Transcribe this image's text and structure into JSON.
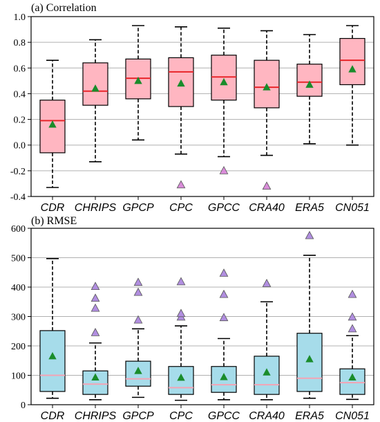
{
  "chart_data": [
    {
      "type": "box",
      "title": "(a) Correlation",
      "categories": [
        "CDR",
        "CHRIPS",
        "GPCP",
        "CPC",
        "GPCC",
        "CRA40",
        "ERA5",
        "CN051"
      ],
      "ylim": [
        -0.4,
        1.0
      ],
      "yticks": [
        "-0.4",
        "-0.2",
        "0.0",
        "0.2",
        "0.4",
        "0.6",
        "0.8",
        "1.0"
      ],
      "ytick_values": [
        -0.4,
        -0.2,
        0.0,
        0.2,
        0.4,
        0.6,
        0.8,
        1.0
      ],
      "grid": "horizontal",
      "box_color": "#ffb6c1",
      "median_color": "#e8252a",
      "mean_color": "#1a8c2b",
      "outlier_color": "#d98cd9",
      "boxes": [
        {
          "whisker_low": -0.33,
          "q1": -0.06,
          "median": 0.19,
          "q3": 0.35,
          "whisker_high": 0.66,
          "mean": 0.16,
          "outliers": []
        },
        {
          "whisker_low": -0.13,
          "q1": 0.31,
          "median": 0.42,
          "q3": 0.64,
          "whisker_high": 0.82,
          "mean": 0.44,
          "outliers": []
        },
        {
          "whisker_low": 0.04,
          "q1": 0.36,
          "median": 0.52,
          "q3": 0.67,
          "whisker_high": 0.93,
          "mean": 0.5,
          "outliers": []
        },
        {
          "whisker_low": -0.07,
          "q1": 0.3,
          "median": 0.57,
          "q3": 0.68,
          "whisker_high": 0.92,
          "mean": 0.48,
          "outliers": [
            -0.31
          ]
        },
        {
          "whisker_low": -0.09,
          "q1": 0.35,
          "median": 0.53,
          "q3": 0.7,
          "whisker_high": 0.91,
          "mean": 0.49,
          "outliers": [
            -0.2
          ]
        },
        {
          "whisker_low": -0.08,
          "q1": 0.29,
          "median": 0.45,
          "q3": 0.66,
          "whisker_high": 0.89,
          "mean": 0.45,
          "outliers": [
            -0.32
          ]
        },
        {
          "whisker_low": 0.01,
          "q1": 0.38,
          "median": 0.49,
          "q3": 0.63,
          "whisker_high": 0.86,
          "mean": 0.47,
          "outliers": []
        },
        {
          "whisker_low": 0.0,
          "q1": 0.47,
          "median": 0.66,
          "q3": 0.83,
          "whisker_high": 0.93,
          "mean": 0.59,
          "outliers": []
        }
      ]
    },
    {
      "type": "box",
      "title": "(b) RMSE",
      "categories": [
        "CDR",
        "CHRIPS",
        "GPCP",
        "CPC",
        "GPCC",
        "CRA40",
        "ERA5",
        "CN051"
      ],
      "ylim": [
        0,
        600
      ],
      "yticks": [
        "0",
        "100",
        "200",
        "300",
        "400",
        "500",
        "600"
      ],
      "ytick_values": [
        0,
        100,
        200,
        300,
        400,
        500,
        600
      ],
      "grid": "horizontal",
      "box_color": "#a6dcea",
      "median_color": "#f4a3b4",
      "mean_color": "#1a8c2b",
      "outlier_color": "#b18ee0",
      "boxes": [
        {
          "whisker_low": 22,
          "q1": 45,
          "median": 100,
          "q3": 252,
          "whisker_high": 497,
          "mean": 165,
          "outliers": []
        },
        {
          "whisker_low": 17,
          "q1": 35,
          "median": 70,
          "q3": 115,
          "whisker_high": 210,
          "mean": 93,
          "outliers": [
            245,
            328,
            362,
            402
          ]
        },
        {
          "whisker_low": 25,
          "q1": 63,
          "median": 88,
          "q3": 148,
          "whisker_high": 258,
          "mean": 115,
          "outliers": [
            288,
            382,
            416
          ]
        },
        {
          "whisker_low": 15,
          "q1": 35,
          "median": 58,
          "q3": 130,
          "whisker_high": 268,
          "mean": 92,
          "outliers": [
            298,
            310,
            418
          ]
        },
        {
          "whisker_low": 17,
          "q1": 42,
          "median": 68,
          "q3": 130,
          "whisker_high": 225,
          "mean": 94,
          "outliers": [
            296,
            375,
            447
          ]
        },
        {
          "whisker_low": 17,
          "q1": 35,
          "median": 68,
          "q3": 165,
          "whisker_high": 350,
          "mean": 110,
          "outliers": [
            412
          ]
        },
        {
          "whisker_low": 22,
          "q1": 45,
          "median": 90,
          "q3": 243,
          "whisker_high": 508,
          "mean": 155,
          "outliers": [
            575
          ]
        },
        {
          "whisker_low": 18,
          "q1": 35,
          "median": 75,
          "q3": 122,
          "whisker_high": 235,
          "mean": 93,
          "outliers": [
            258,
            298,
            375
          ]
        }
      ]
    }
  ]
}
